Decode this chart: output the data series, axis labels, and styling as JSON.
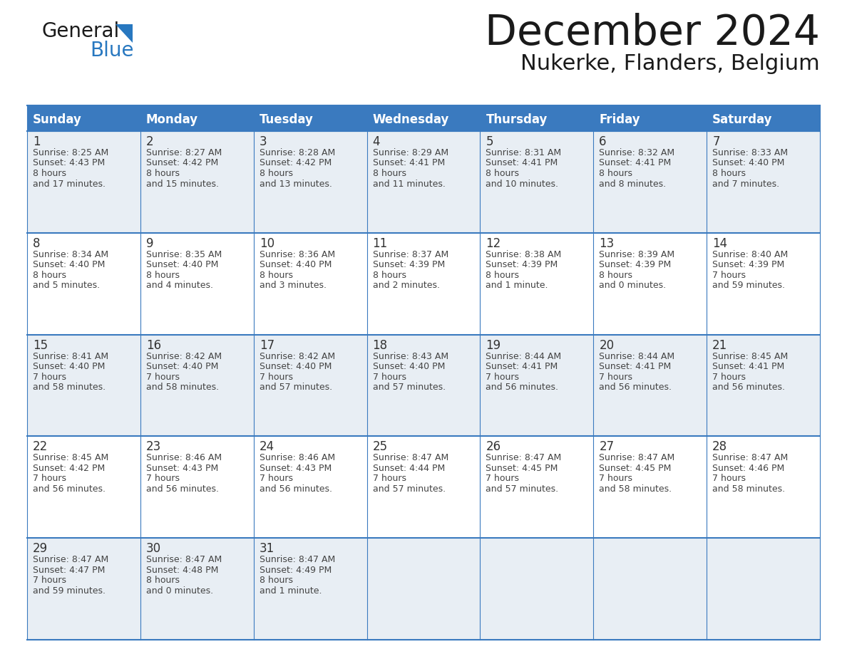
{
  "title": "December 2024",
  "subtitle": "Nukerke, Flanders, Belgium",
  "days_of_week": [
    "Sunday",
    "Monday",
    "Tuesday",
    "Wednesday",
    "Thursday",
    "Friday",
    "Saturday"
  ],
  "header_bg": "#3a7abf",
  "header_text": "#ffffff",
  "row_bg_odd": "#e8eef4",
  "row_bg_even": "#ffffff",
  "border_color": "#3a7abf",
  "day_number_color": "#333333",
  "text_color": "#444444",
  "title_color": "#1a1a1a",
  "logo_color1": "#1a1a1a",
  "logo_color2": "#2878c0",
  "calendar_data": [
    [
      {
        "day": 1,
        "sunrise": "8:25 AM",
        "sunset": "4:43 PM",
        "daylight": "8 hours and 17 minutes."
      },
      {
        "day": 2,
        "sunrise": "8:27 AM",
        "sunset": "4:42 PM",
        "daylight": "8 hours and 15 minutes."
      },
      {
        "day": 3,
        "sunrise": "8:28 AM",
        "sunset": "4:42 PM",
        "daylight": "8 hours and 13 minutes."
      },
      {
        "day": 4,
        "sunrise": "8:29 AM",
        "sunset": "4:41 PM",
        "daylight": "8 hours and 11 minutes."
      },
      {
        "day": 5,
        "sunrise": "8:31 AM",
        "sunset": "4:41 PM",
        "daylight": "8 hours and 10 minutes."
      },
      {
        "day": 6,
        "sunrise": "8:32 AM",
        "sunset": "4:41 PM",
        "daylight": "8 hours and 8 minutes."
      },
      {
        "day": 7,
        "sunrise": "8:33 AM",
        "sunset": "4:40 PM",
        "daylight": "8 hours and 7 minutes."
      }
    ],
    [
      {
        "day": 8,
        "sunrise": "8:34 AM",
        "sunset": "4:40 PM",
        "daylight": "8 hours and 5 minutes."
      },
      {
        "day": 9,
        "sunrise": "8:35 AM",
        "sunset": "4:40 PM",
        "daylight": "8 hours and 4 minutes."
      },
      {
        "day": 10,
        "sunrise": "8:36 AM",
        "sunset": "4:40 PM",
        "daylight": "8 hours and 3 minutes."
      },
      {
        "day": 11,
        "sunrise": "8:37 AM",
        "sunset": "4:39 PM",
        "daylight": "8 hours and 2 minutes."
      },
      {
        "day": 12,
        "sunrise": "8:38 AM",
        "sunset": "4:39 PM",
        "daylight": "8 hours and 1 minute."
      },
      {
        "day": 13,
        "sunrise": "8:39 AM",
        "sunset": "4:39 PM",
        "daylight": "8 hours and 0 minutes."
      },
      {
        "day": 14,
        "sunrise": "8:40 AM",
        "sunset": "4:39 PM",
        "daylight": "7 hours and 59 minutes."
      }
    ],
    [
      {
        "day": 15,
        "sunrise": "8:41 AM",
        "sunset": "4:40 PM",
        "daylight": "7 hours and 58 minutes."
      },
      {
        "day": 16,
        "sunrise": "8:42 AM",
        "sunset": "4:40 PM",
        "daylight": "7 hours and 58 minutes."
      },
      {
        "day": 17,
        "sunrise": "8:42 AM",
        "sunset": "4:40 PM",
        "daylight": "7 hours and 57 minutes."
      },
      {
        "day": 18,
        "sunrise": "8:43 AM",
        "sunset": "4:40 PM",
        "daylight": "7 hours and 57 minutes."
      },
      {
        "day": 19,
        "sunrise": "8:44 AM",
        "sunset": "4:41 PM",
        "daylight": "7 hours and 56 minutes."
      },
      {
        "day": 20,
        "sunrise": "8:44 AM",
        "sunset": "4:41 PM",
        "daylight": "7 hours and 56 minutes."
      },
      {
        "day": 21,
        "sunrise": "8:45 AM",
        "sunset": "4:41 PM",
        "daylight": "7 hours and 56 minutes."
      }
    ],
    [
      {
        "day": 22,
        "sunrise": "8:45 AM",
        "sunset": "4:42 PM",
        "daylight": "7 hours and 56 minutes."
      },
      {
        "day": 23,
        "sunrise": "8:46 AM",
        "sunset": "4:43 PM",
        "daylight": "7 hours and 56 minutes."
      },
      {
        "day": 24,
        "sunrise": "8:46 AM",
        "sunset": "4:43 PM",
        "daylight": "7 hours and 56 minutes."
      },
      {
        "day": 25,
        "sunrise": "8:47 AM",
        "sunset": "4:44 PM",
        "daylight": "7 hours and 57 minutes."
      },
      {
        "day": 26,
        "sunrise": "8:47 AM",
        "sunset": "4:45 PM",
        "daylight": "7 hours and 57 minutes."
      },
      {
        "day": 27,
        "sunrise": "8:47 AM",
        "sunset": "4:45 PM",
        "daylight": "7 hours and 58 minutes."
      },
      {
        "day": 28,
        "sunrise": "8:47 AM",
        "sunset": "4:46 PM",
        "daylight": "7 hours and 58 minutes."
      }
    ],
    [
      {
        "day": 29,
        "sunrise": "8:47 AM",
        "sunset": "4:47 PM",
        "daylight": "7 hours and 59 minutes."
      },
      {
        "day": 30,
        "sunrise": "8:47 AM",
        "sunset": "4:48 PM",
        "daylight": "8 hours and 0 minutes."
      },
      {
        "day": 31,
        "sunrise": "8:47 AM",
        "sunset": "4:49 PM",
        "daylight": "8 hours and 1 minute."
      },
      null,
      null,
      null,
      null
    ]
  ]
}
